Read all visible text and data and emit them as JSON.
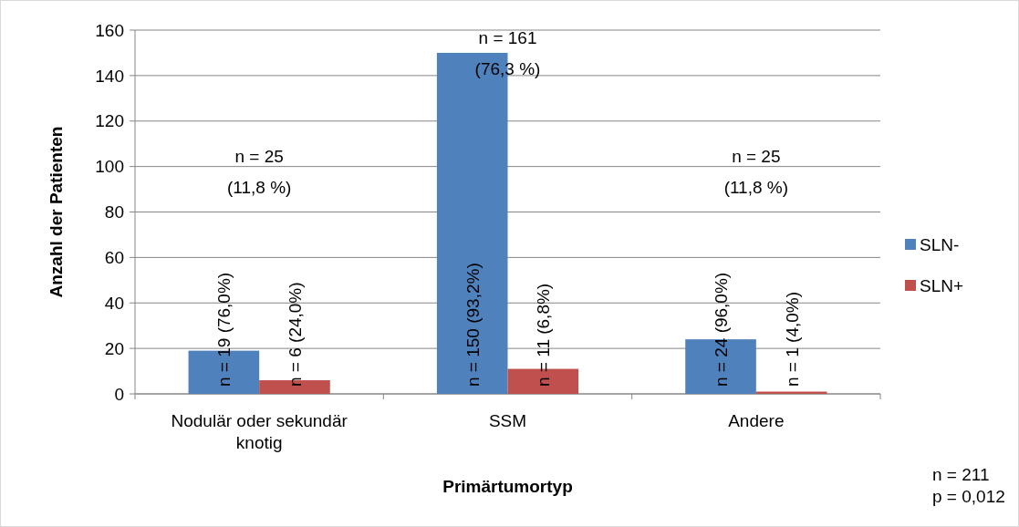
{
  "chart_data": {
    "type": "bar",
    "xlabel": "Primärtumortyp",
    "ylabel": "Anzahl der Patienten",
    "categories": [
      "Nodulär oder sekundär knotig",
      "SSM",
      "Andere"
    ],
    "series": [
      {
        "name": "SLN-",
        "color": "#4f81bd",
        "values": [
          19,
          150,
          24
        ],
        "value_labels": [
          "n = 19 (76,0%)",
          "n = 150 (93,2%)",
          "n = 24 (96,0%)"
        ]
      },
      {
        "name": "SLN+",
        "color": "#c0504d",
        "values": [
          6,
          11,
          1
        ],
        "value_labels": [
          "n = 6 (24,0%)",
          "n = 11 (6,8%)",
          "n = 1 (4,0%)"
        ]
      }
    ],
    "ylim": [
      0,
      160
    ],
    "yticks": [
      0,
      20,
      40,
      60,
      80,
      100,
      120,
      140,
      160
    ],
    "grid": "y",
    "legend": "right",
    "annotations": [
      "n = 25\n(11,8 %)",
      "n = 161\n(76,3 %)",
      "n = 25\n(11,8 %)",
      "n = 211\np = 0,012"
    ]
  }
}
